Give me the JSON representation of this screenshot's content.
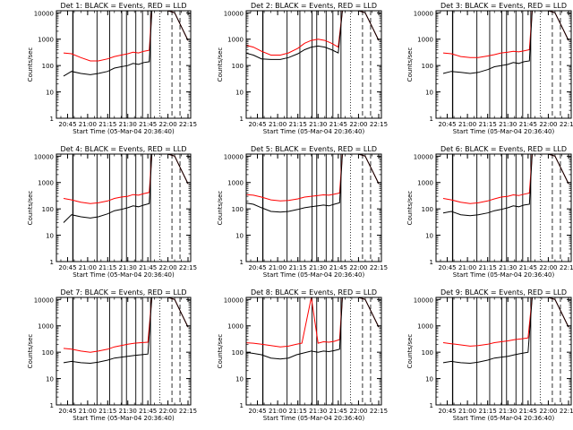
{
  "chart_data": {
    "type": "line",
    "y_scale": "log",
    "ylim": [
      1,
      12000
    ],
    "ylabel": "Counts/sec",
    "xlabel": "Start Time (05-Mar-04 20:36:40)",
    "xlim": [
      "20:36:40",
      "22:17:00"
    ],
    "y_ticks": [
      "1",
      "10",
      "100",
      "1000",
      "10000"
    ],
    "x_ticks": [
      "20:45",
      "21:00",
      "21:15",
      "21:30",
      "21:45",
      "22:00",
      "22:15"
    ],
    "series_colors": {
      "events": "#000000",
      "lld": "#ff0000"
    },
    "grid": false,
    "panels": [
      {
        "title": "Det 1: BLACK = Events, RED = LLD",
        "x": [
          "20:42",
          "20:48",
          "20:55",
          "21:02",
          "21:08",
          "21:15",
          "21:20",
          "21:25",
          "21:30",
          "21:34",
          "21:38",
          "21:42",
          "21:46",
          "21:48",
          "21:55",
          "22:00",
          "22:05",
          "22:10",
          "22:15"
        ],
        "series": [
          {
            "values": [
              300,
              280,
              200,
              150,
              150,
              180,
              220,
              250,
              280,
              320,
              300,
              350,
              380,
              12000,
              12000,
              12000,
              10000,
              3000,
              900
            ]
          },
          {
            "values": [
              40,
              60,
              50,
              45,
              50,
              60,
              80,
              90,
              100,
              120,
              110,
              130,
              140,
              12000,
              12000,
              12000,
              10000,
              3000,
              900
            ]
          }
        ]
      },
      {
        "title": "Det 2: BLACK = Events, RED = LLD",
        "x": [
          "20:36",
          "20:42",
          "20:48",
          "20:55",
          "21:02",
          "21:08",
          "21:15",
          "21:20",
          "21:25",
          "21:30",
          "21:35",
          "21:40",
          "21:45",
          "21:48",
          "21:55",
          "22:00",
          "22:05",
          "22:10",
          "22:15"
        ],
        "series": [
          {
            "values": [
              600,
              500,
              350,
              250,
              250,
              300,
              450,
              700,
              900,
              1000,
              900,
              700,
              500,
              12000,
              12000,
              12000,
              10000,
              3000,
              900
            ]
          },
          {
            "values": [
              300,
              250,
              180,
              170,
              170,
              200,
              280,
              400,
              500,
              550,
              500,
              400,
              300,
              12000,
              12000,
              12000,
              10000,
              3000,
              900
            ]
          }
        ]
      },
      {
        "title": "Det 3: BLACK = Events, RED = LLD",
        "x": [
          "20:42",
          "20:48",
          "20:55",
          "21:02",
          "21:08",
          "21:15",
          "21:20",
          "21:25",
          "21:30",
          "21:34",
          "21:38",
          "21:42",
          "21:46",
          "21:48",
          "21:55",
          "22:00",
          "22:05",
          "22:10",
          "22:15"
        ],
        "series": [
          {
            "values": [
              300,
              280,
              220,
              200,
              200,
              230,
              260,
              300,
              320,
              350,
              330,
              360,
              400,
              12000,
              12000,
              12000,
              10000,
              3000,
              900
            ]
          },
          {
            "values": [
              50,
              60,
              55,
              50,
              55,
              70,
              90,
              100,
              110,
              130,
              120,
              140,
              150,
              12000,
              12000,
              12000,
              10000,
              3000,
              900
            ]
          }
        ]
      },
      {
        "title": "Det 4: BLACK = Events, RED = LLD",
        "x": [
          "20:42",
          "20:48",
          "20:55",
          "21:02",
          "21:08",
          "21:15",
          "21:20",
          "21:25",
          "21:30",
          "21:34",
          "21:38",
          "21:42",
          "21:46",
          "21:48",
          "21:55",
          "22:00",
          "22:05",
          "22:10",
          "22:15"
        ],
        "series": [
          {
            "values": [
              250,
              220,
              180,
              160,
              170,
              200,
              250,
              280,
              300,
              350,
              330,
              380,
              420,
              12000,
              12000,
              12000,
              10000,
              3000,
              900
            ]
          },
          {
            "values": [
              30,
              60,
              50,
              45,
              50,
              65,
              85,
              95,
              110,
              130,
              120,
              140,
              160,
              12000,
              12000,
              12000,
              10000,
              3000,
              900
            ]
          }
        ]
      },
      {
        "title": "Det 5: BLACK = Events, RED = LLD",
        "x": [
          "20:36",
          "20:42",
          "20:48",
          "20:55",
          "21:02",
          "21:08",
          "21:15",
          "21:20",
          "21:25",
          "21:30",
          "21:34",
          "21:38",
          "21:42",
          "21:46",
          "21:48",
          "21:55",
          "22:00",
          "22:05",
          "22:10",
          "22:15"
        ],
        "series": [
          {
            "values": [
              350,
              330,
              280,
              220,
              200,
              210,
              240,
              280,
              300,
              320,
              340,
              330,
              360,
              400,
              12000,
              12000,
              12000,
              10000,
              3000,
              900
            ]
          },
          {
            "values": [
              170,
              150,
              110,
              80,
              75,
              80,
              95,
              110,
              120,
              130,
              140,
              130,
              150,
              170,
              12000,
              12000,
              12000,
              10000,
              3000,
              900
            ]
          }
        ]
      },
      {
        "title": "Det 6: BLACK = Events, RED = LLD",
        "x": [
          "20:42",
          "20:48",
          "20:55",
          "21:02",
          "21:08",
          "21:15",
          "21:20",
          "21:25",
          "21:30",
          "21:34",
          "21:38",
          "21:42",
          "21:46",
          "21:48",
          "21:55",
          "22:00",
          "22:05",
          "22:10",
          "22:15"
        ],
        "series": [
          {
            "values": [
              250,
              220,
              180,
              160,
              170,
              200,
              240,
              280,
              300,
              340,
              320,
              360,
              400,
              12000,
              12000,
              12000,
              10000,
              3000,
              900
            ]
          },
          {
            "values": [
              70,
              80,
              60,
              55,
              60,
              70,
              85,
              95,
              110,
              130,
              120,
              140,
              150,
              12000,
              12000,
              12000,
              10000,
              3000,
              900
            ]
          }
        ]
      },
      {
        "title": "Det 7: BLACK = Events, RED = LLD",
        "x": [
          "20:42",
          "20:48",
          "20:55",
          "21:02",
          "21:08",
          "21:15",
          "21:20",
          "21:25",
          "21:30",
          "21:35",
          "21:40",
          "21:45",
          "21:48",
          "21:55",
          "22:00",
          "22:05",
          "22:10",
          "22:15"
        ],
        "series": [
          {
            "values": [
              140,
              130,
              110,
              100,
              110,
              130,
              160,
              180,
              200,
              220,
              230,
              240,
              12000,
              12000,
              12000,
              10000,
              3000,
              900
            ]
          },
          {
            "values": [
              40,
              45,
              40,
              38,
              42,
              50,
              60,
              65,
              70,
              75,
              80,
              85,
              12000,
              12000,
              12000,
              10000,
              3000,
              900
            ]
          }
        ]
      },
      {
        "title": "Det 8: BLACK = Events, RED = LLD",
        "x": [
          "20:36",
          "20:42",
          "20:48",
          "20:55",
          "21:02",
          "21:08",
          "21:14",
          "21:18",
          "21:25",
          "21:30",
          "21:34",
          "21:38",
          "21:42",
          "21:46",
          "21:48",
          "21:55",
          "22:00",
          "22:05",
          "22:10",
          "22:15"
        ],
        "series": [
          {
            "values": [
              230,
              220,
              200,
              180,
              160,
              170,
              200,
              220,
              12000,
              220,
              250,
              240,
              260,
              300,
              12000,
              12000,
              12000,
              10000,
              3000,
              900
            ]
          },
          {
            "values": [
              100,
              90,
              80,
              60,
              55,
              60,
              80,
              90,
              110,
              100,
              110,
              105,
              115,
              130,
              12000,
              12000,
              12000,
              10000,
              3000,
              900
            ]
          }
        ]
      },
      {
        "title": "Det 9: BLACK = Events, RED = LLD",
        "x": [
          "20:42",
          "20:48",
          "20:55",
          "21:02",
          "21:08",
          "21:15",
          "21:20",
          "21:25",
          "21:30",
          "21:35",
          "21:40",
          "21:45",
          "21:48",
          "21:55",
          "22:00",
          "22:05",
          "22:10",
          "22:15"
        ],
        "series": [
          {
            "values": [
              230,
              210,
              190,
              170,
              180,
              200,
              230,
              250,
              270,
              300,
              320,
              350,
              12000,
              12000,
              12000,
              10000,
              3000,
              900
            ]
          },
          {
            "values": [
              40,
              45,
              40,
              38,
              42,
              50,
              60,
              65,
              70,
              80,
              90,
              100,
              12000,
              12000,
              12000,
              10000,
              3000,
              900
            ]
          }
        ]
      }
    ]
  }
}
